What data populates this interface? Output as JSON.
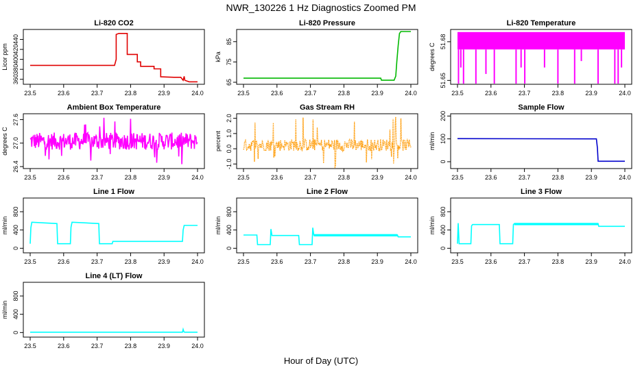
{
  "figure": {
    "title": "NWR_130226  1 Hz Diagnostics Zoomed PM",
    "xlabel": "Hour of Day (UTC)"
  },
  "chart_data": [
    {
      "type": "line",
      "title": "Li-820 CO2",
      "ylabel": "Licor ppm",
      "xlim": [
        23.5,
        24.0
      ],
      "xticks": [
        "23.5",
        "23.6",
        "23.7",
        "23.8",
        "23.9",
        "24.0"
      ],
      "ylim": [
        350,
        460
      ],
      "yticks": [
        "360",
        "380",
        "400",
        "420",
        "440"
      ],
      "color": "#e00000",
      "series": [
        {
          "x": [
            23.5,
            23.75,
            23.752,
            23.757,
            23.757,
            23.765,
            23.79,
            23.79,
            23.82,
            23.82,
            23.83,
            23.83,
            23.87,
            23.87,
            23.89,
            23.89,
            23.93,
            23.95,
            23.957,
            23.96,
            23.962,
            23.975,
            24.0
          ],
          "y": [
            388,
            388,
            388,
            400,
            450,
            452,
            452,
            410,
            410,
            395,
            395,
            386,
            386,
            381,
            381,
            365,
            364,
            364,
            358,
            366,
            358,
            355,
            355
          ]
        }
      ]
    },
    {
      "type": "line",
      "title": "Li-820 Pressure",
      "ylabel": "kPa",
      "xlim": [
        23.5,
        24.0
      ],
      "xticks": [
        "23.5",
        "23.6",
        "23.7",
        "23.8",
        "23.9",
        "24.0"
      ],
      "ylim": [
        64,
        91
      ],
      "yticks": [
        "65",
        "75",
        "85"
      ],
      "color": "#00b800",
      "series": [
        {
          "x": [
            23.5,
            23.91,
            23.912,
            23.95,
            23.955,
            23.958,
            23.962,
            23.966,
            23.97,
            23.975,
            24.0
          ],
          "y": [
            67,
            67,
            66,
            66,
            68,
            75,
            83,
            89,
            90,
            90,
            90
          ]
        }
      ]
    },
    {
      "type": "line",
      "title": "Li-820 Temperature",
      "ylabel": "degrees C",
      "xlim": [
        23.5,
        24.0
      ],
      "xticks": [
        "23.5",
        "23.6",
        "23.7",
        "23.8",
        "23.9",
        "24.0"
      ],
      "ylim": [
        51.647,
        51.6895
      ],
      "yticks": [
        "51.65",
        "51.68"
      ],
      "color": "#ff00ff",
      "band": [
        51.674,
        51.6875
      ],
      "spikes": [
        [
          23.503,
          51.6475
        ],
        [
          23.51,
          51.66
        ],
        [
          23.518,
          51.6475
        ],
        [
          23.555,
          51.6475
        ],
        [
          23.585,
          51.655
        ],
        [
          23.61,
          51.6475
        ],
        [
          23.675,
          51.6475
        ],
        [
          23.69,
          51.66
        ],
        [
          23.701,
          51.6475
        ],
        [
          23.76,
          51.66
        ],
        [
          23.8,
          51.6475
        ],
        [
          23.85,
          51.6475
        ],
        [
          23.87,
          51.665
        ],
        [
          23.92,
          51.6475
        ],
        [
          23.97,
          51.6475
        ],
        [
          23.98,
          51.6475
        ],
        [
          23.99,
          51.66
        ]
      ]
    },
    {
      "type": "line",
      "title": "Ambient Box Temperature",
      "ylabel": "degrees C",
      "xlim": [
        23.5,
        24.0
      ],
      "xticks": [
        "23.5",
        "23.6",
        "23.7",
        "23.8",
        "23.9",
        "24.0"
      ],
      "ylim": [
        26.35,
        27.75
      ],
      "yticks": [
        "26.4",
        "27.0",
        "27.6"
      ],
      "color": "#ff00ff",
      "noise": {
        "center": 27.05,
        "amplitude": 0.22,
        "spike_low": 26.45,
        "spike_high": 27.65
      }
    },
    {
      "type": "scatter",
      "title": "Gas Stream RH",
      "ylabel": "percent",
      "xlim": [
        23.5,
        24.0
      ],
      "xticks": [
        "23.5",
        "23.6",
        "23.7",
        "23.8",
        "23.9",
        "24.0"
      ],
      "ylim": [
        -1.3,
        2.3
      ],
      "yticks": [
        "-1.0",
        "0.0",
        "1.0",
        "2.0"
      ],
      "color": "#ff9900",
      "noise": {
        "center": 0.25,
        "amplitude": 0.4,
        "spike_low": -1.25,
        "spike_high": 2.15
      }
    },
    {
      "type": "line",
      "title": "Sample Flow",
      "ylabel": "ml/min",
      "xlim": [
        23.5,
        24.0
      ],
      "xticks": [
        "23.5",
        "23.6",
        "23.7",
        "23.8",
        "23.9",
        "24.0"
      ],
      "ylim": [
        -30,
        210
      ],
      "yticks": [
        "0",
        "100",
        "200"
      ],
      "color": "#0000cc",
      "series": [
        {
          "x": [
            23.5,
            23.915,
            23.918,
            23.92,
            24.0
          ],
          "y": [
            101,
            100,
            60,
            2,
            2
          ]
        }
      ]
    },
    {
      "type": "line",
      "title": "Line 1 Flow",
      "ylabel": "ml/min",
      "xlim": [
        23.5,
        24.0
      ],
      "xticks": [
        "23.5",
        "23.6",
        "23.7",
        "23.8",
        "23.9",
        "24.0"
      ],
      "ylim": [
        -100,
        1100
      ],
      "yticks": [
        "0",
        "400",
        "800"
      ],
      "color": "#00ffff",
      "series": [
        {
          "x": [
            23.5,
            23.502,
            23.505,
            23.58,
            23.582,
            23.62,
            23.622,
            23.625,
            23.705,
            23.707,
            23.745,
            23.747,
            23.955,
            23.957,
            23.96,
            24.0
          ],
          "y": [
            100,
            450,
            570,
            540,
            100,
            100,
            460,
            570,
            540,
            100,
            100,
            150,
            150,
            400,
            500,
            500
          ]
        }
      ]
    },
    {
      "type": "line",
      "title": "Line 2 Flow",
      "ylabel": "ml/min",
      "xlim": [
        23.5,
        24.0
      ],
      "xticks": [
        "23.5",
        "23.6",
        "23.7",
        "23.8",
        "23.9",
        "24.0"
      ],
      "ylim": [
        -100,
        1100
      ],
      "yticks": [
        "0",
        "400",
        "800"
      ],
      "color": "#00ffff",
      "series": [
        {
          "x": [
            23.5,
            23.54,
            23.542,
            23.58,
            23.582,
            23.585,
            23.665,
            23.667,
            23.705,
            23.707,
            23.71,
            23.96,
            23.962,
            24.0
          ],
          "y": [
            290,
            290,
            80,
            80,
            420,
            280,
            280,
            80,
            80,
            450,
            290,
            290,
            250,
            250
          ]
        }
      ],
      "band_x": [
        23.71,
        23.96
      ],
      "band": [
        260,
        310
      ]
    },
    {
      "type": "line",
      "title": "Line 3 Flow",
      "ylabel": "ml/min",
      "xlim": [
        23.5,
        24.0
      ],
      "xticks": [
        "23.5",
        "23.6",
        "23.7",
        "23.8",
        "23.9",
        "24.0"
      ],
      "ylim": [
        -100,
        1100
      ],
      "yticks": [
        "0",
        "400",
        "800"
      ],
      "color": "#00ffff",
      "series": [
        {
          "x": [
            23.5,
            23.502,
            23.505,
            23.54,
            23.542,
            23.545,
            23.625,
            23.627,
            23.665,
            23.667,
            23.67,
            23.92,
            23.922,
            23.925,
            24.0
          ],
          "y": [
            100,
            550,
            100,
            100,
            490,
            520,
            520,
            100,
            100,
            520,
            540,
            540,
            480,
            480,
            480
          ]
        }
      ],
      "band_x": [
        23.67,
        23.92
      ],
      "band": [
        505,
        555
      ]
    },
    {
      "type": "line",
      "title": "Line 4 (LT) Flow",
      "ylabel": "ml/min",
      "xlim": [
        23.5,
        24.0
      ],
      "xticks": [
        "23.5",
        "23.6",
        "23.7",
        "23.8",
        "23.9",
        "24.0"
      ],
      "ylim": [
        -100,
        1100
      ],
      "yticks": [
        "0",
        "400",
        "800"
      ],
      "color": "#00ffff",
      "series": [
        {
          "x": [
            23.5,
            23.955,
            23.957,
            23.959,
            23.961,
            24.0
          ],
          "y": [
            8,
            8,
            70,
            20,
            8,
            8
          ]
        }
      ]
    }
  ]
}
